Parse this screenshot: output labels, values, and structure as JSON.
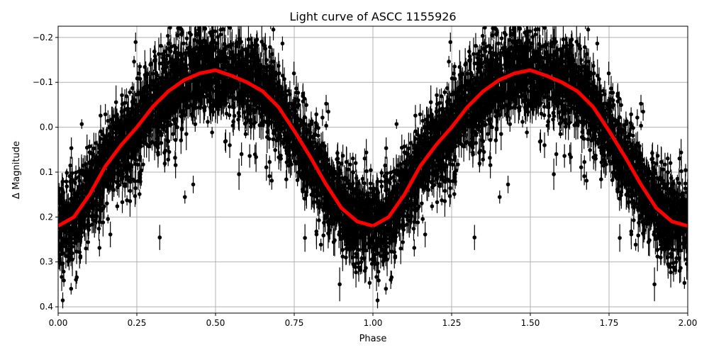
{
  "chart_data": {
    "type": "scatter",
    "title": "Light curve of ASCC 1155926",
    "xlabel": "Phase",
    "ylabel": "Δ Magnitude",
    "xlim": [
      0.0,
      2.0
    ],
    "ylim": [
      0.414,
      -0.225
    ],
    "y_inverted": true,
    "grid": true,
    "xticks": [
      "0.00",
      "0.25",
      "0.50",
      "0.75",
      "1.00",
      "1.25",
      "1.50",
      "1.75",
      "2.00"
    ],
    "xtick_values": [
      0,
      0.25,
      0.5,
      0.75,
      1.0,
      1.25,
      1.5,
      1.75,
      2.0
    ],
    "yticks": [
      "−0.2",
      "−0.1",
      "0.0",
      "0.1",
      "0.2",
      "0.3",
      "0.4"
    ],
    "ytick_values": [
      -0.2,
      -0.1,
      0.0,
      0.1,
      0.2,
      0.3,
      0.4
    ],
    "series": [
      {
        "kind": "errorbar-scatter",
        "color": "#000000",
        "description_of_points": "dense photometric measurements folded on phase, repeated over two cycles"
      },
      {
        "kind": "binned-curve",
        "color": "#ff0000",
        "phase": [
          0,
          0.05,
          0.1,
          0.15,
          0.2,
          0.25,
          0.3,
          0.35,
          0.4,
          0.45,
          0.5,
          0.55,
          0.6,
          0.65,
          0.7,
          0.75,
          0.8,
          0.85,
          0.9,
          0.95,
          1.0
        ],
        "magnitude": [
          0.22,
          0.2,
          0.15,
          0.087,
          0.04,
          0.0,
          -0.045,
          -0.08,
          -0.105,
          -0.12,
          -0.127,
          -0.115,
          -0.1,
          -0.08,
          -0.045,
          0.008,
          0.065,
          0.126,
          0.18,
          0.21,
          0.22
        ]
      }
    ]
  }
}
